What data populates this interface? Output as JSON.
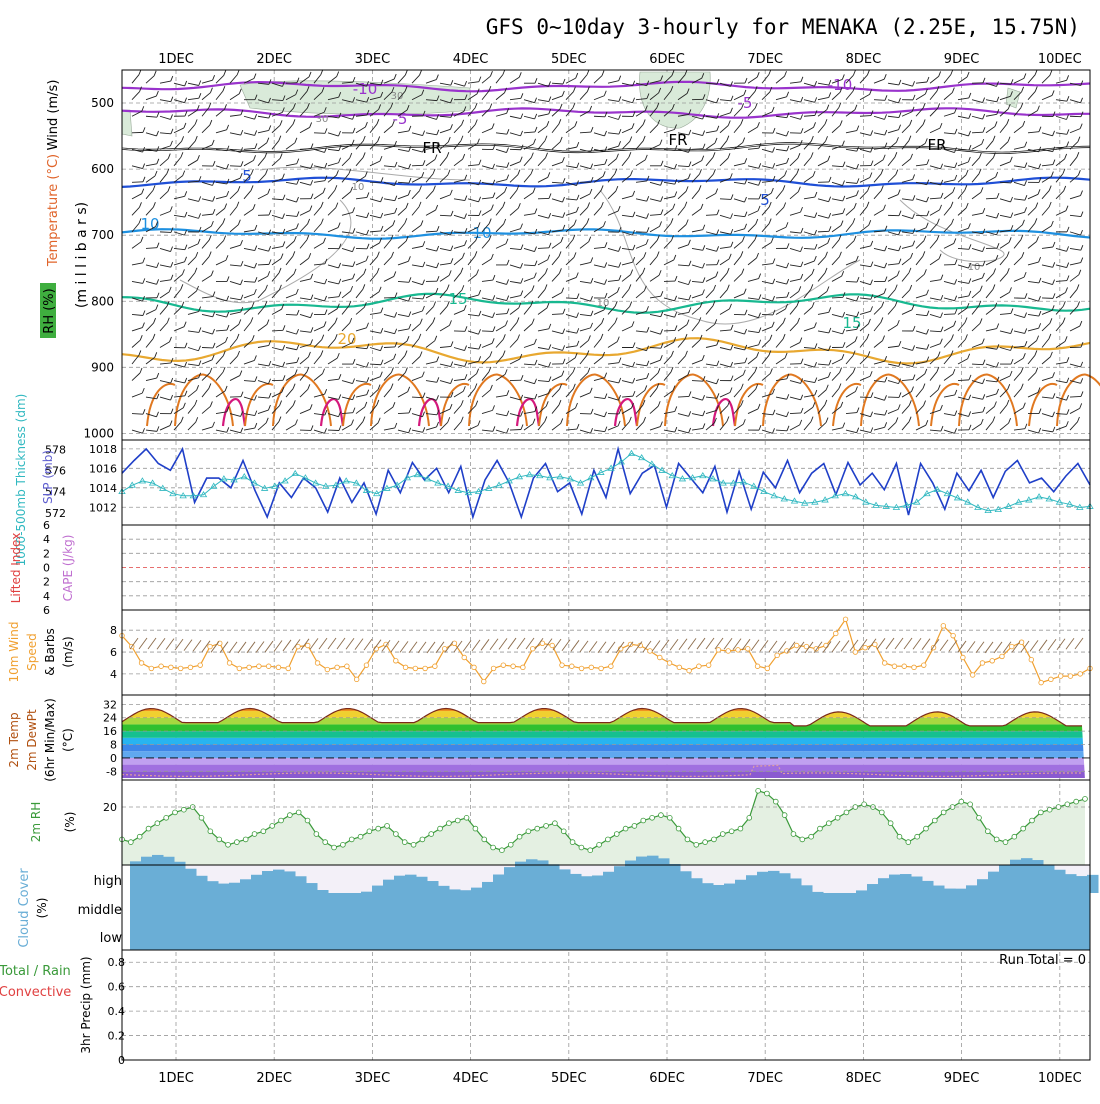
{
  "title": "GFS 0~10day 3-hourly for MENAKA (2.25E, 15.75N)",
  "date_labels": [
    "1DEC",
    "2DEC",
    "3DEC",
    "4DEC",
    "5DEC",
    "6DEC",
    "7DEC",
    "8DEC",
    "9DEC",
    "10DEC"
  ],
  "colors": {
    "purple": "#9933cc",
    "black": "#000000",
    "blue": "#1f4fd6",
    "sky": "#1e90e0",
    "green": "#18b890",
    "orange": "#e8a830",
    "dorange": "#e07820",
    "magenta": "#d4187c",
    "rh_fill": "#d9ead9",
    "cyan": "#30b8c0",
    "navy": "#1f3fc8",
    "wind_brown": "#8a6a4a",
    "wind_orange": "#f0a030",
    "rh2m": "#3a9a3a",
    "cloud": "#6aaed6",
    "cloud_bg": "#f3f0f8"
  },
  "chart_data": [
    {
      "type": "line",
      "panel": "upper-air",
      "ylabel_left": [
        "Wind (m/s)",
        "Temperature (°C)",
        "RH (%)"
      ],
      "ylabel_right": "(m i l l i b a r s)",
      "y_ticks": [
        500,
        600,
        700,
        800,
        900,
        1000
      ],
      "ylim": [
        450,
        1010
      ],
      "isotherms": [
        {
          "name": "-10",
          "level": 475,
          "color": "purple"
        },
        {
          "name": "-5",
          "level": 515,
          "color": "purple"
        },
        {
          "name": "FR",
          "level": 568,
          "color": "black"
        },
        {
          "name": "5",
          "level": 620,
          "color": "blue"
        },
        {
          "name": "10",
          "level": 698,
          "color": "sky"
        },
        {
          "name": "15",
          "level": 803,
          "color": "green"
        },
        {
          "name": "20",
          "level": 875,
          "color": "orange"
        }
      ],
      "contour_labels": [
        "-10",
        "-5",
        "FR",
        "5",
        "10",
        "15",
        "20",
        "30",
        "10"
      ]
    },
    {
      "type": "line",
      "panel": "slp-thickness",
      "ylabel_left": [
        "1000-500mb Thickness (dm)"
      ],
      "ylabel_right": "SLP (mb)",
      "y_ticks_left": [
        572,
        574,
        576,
        578
      ],
      "y_ticks_right": [
        1012,
        1014,
        1016,
        1018
      ],
      "series": [
        {
          "name": "SLP (mb)",
          "color": "navy",
          "values": [
            1015.5,
            1016.8,
            1018,
            1016.5,
            1015.8,
            1018,
            1012.5,
            1015,
            1015,
            1014,
            1016.8,
            1013.7,
            1011,
            1014.5,
            1013,
            1015,
            1014,
            1011.5,
            1015,
            1012.5,
            1014.5,
            1011.3,
            1015.8,
            1013.5,
            1016.6,
            1014.8,
            1016,
            1013.5,
            1016.2,
            1011,
            1014.8,
            1016.8,
            1014.5,
            1011,
            1015,
            1016.5,
            1013.6,
            1014.5,
            1011.3,
            1015.8,
            1013,
            1018,
            1013.4,
            1015.5,
            1016.3,
            1012,
            1016.5,
            1015,
            1013.5,
            1016.2,
            1011.5,
            1015.7,
            1011.8,
            1015.6,
            1014,
            1016.8,
            1013.5,
            1015.5,
            1016.5,
            1013.3,
            1016.6,
            1014.3,
            1015.5,
            1013.8,
            1016.5,
            1011.2,
            1016.5,
            1014.5,
            1011.8,
            1015.5,
            1013.7,
            1015.8,
            1013,
            1015.7,
            1016.8,
            1014.5,
            1015,
            1013.6,
            1015.2,
            1016.5,
            1014.3
          ]
        },
        {
          "name": "1000-500mb Thickness (dm)",
          "color": "cyan",
          "values": [
            574,
            574.6,
            575,
            574.8,
            574.3,
            573.8,
            573.6,
            573.6,
            573.7,
            574.5,
            575.2,
            575.1,
            575.4,
            574.8,
            574.3,
            574.5,
            575,
            575.7,
            575.3,
            574.8,
            574.5,
            574.6,
            575,
            574.8,
            574.1,
            573.8,
            574.3,
            574.6,
            575.3,
            575.6,
            575.2,
            574.8,
            574.5,
            574.1,
            573.9,
            574,
            574.3,
            574.6,
            575,
            575.4,
            575.6,
            575.5,
            575.3,
            575.4,
            575.2,
            574.8,
            575.3,
            575.8,
            576.2,
            576.8,
            577.6,
            577.2,
            576.6,
            576,
            575.5,
            575.2,
            575.3,
            575.5,
            575.2,
            574.8,
            574.8,
            574.9,
            574.5,
            574,
            573.6,
            573.3,
            573.1,
            572.9,
            573,
            573.2,
            573.6,
            573.8,
            573.5,
            573,
            572.7,
            572.6,
            572.5,
            572.7,
            573,
            573.8,
            574.2,
            573.8,
            573.4,
            573,
            572.5,
            572.2,
            572.3,
            572.6,
            573,
            573.2,
            573.5,
            573.3,
            573,
            572.8,
            572.5,
            572.6
          ]
        }
      ]
    },
    {
      "type": "line",
      "panel": "lifted-index-cape",
      "ylabel_left": [
        "Lifted Index"
      ],
      "ylabel_right": "CAPE (J/kg)",
      "y_ticks": [
        6,
        4,
        2,
        0,
        2,
        4,
        6
      ]
    },
    {
      "type": "line",
      "panel": "10m-wind",
      "ylabel_left": [
        "10m Wind",
        "Speed",
        "& Barbs",
        "(m/s)"
      ],
      "y_ticks": [
        4,
        6,
        8
      ],
      "series": [
        {
          "name": "10m Wind Speed",
          "color": "wind_orange",
          "values": [
            7.5,
            6.5,
            5,
            4.5,
            4.7,
            4.6,
            4.5,
            4.6,
            4.8,
            6.5,
            6.8,
            5,
            4.5,
            4.6,
            4.7,
            4.7,
            4.6,
            4.5,
            6.5,
            6.6,
            5,
            4.4,
            4.6,
            4.7,
            3.5,
            4.8,
            6.3,
            6.7,
            5.2,
            4.6,
            4.5,
            4.5,
            4.7,
            6.3,
            6.8,
            5.5,
            4.6,
            3.3,
            4.5,
            4.8,
            4.7,
            4.6,
            6.3,
            6.8,
            6.6,
            4.8,
            4.7,
            4.5,
            4.6,
            4.5,
            4.7,
            6.3,
            6.7,
            6.6,
            6.1,
            5.5,
            5,
            4.6,
            4.3,
            4.7,
            4.8,
            6.2,
            6.1,
            6.2,
            6.3,
            4.7,
            4.5,
            5.7,
            6.1,
            6.6,
            6.5,
            6.3,
            6.6,
            7.7,
            9,
            6,
            6.4,
            6.7,
            5,
            4.7,
            4.7,
            4.6,
            4.8,
            6.4,
            8.4,
            7.5,
            5.5,
            3.9,
            5,
            5.2,
            5.6,
            6.5,
            6.9,
            5.3,
            3.2,
            3.5,
            3.8,
            3.8,
            4,
            4.5
          ]
        }
      ]
    },
    {
      "type": "area",
      "panel": "2m-temp",
      "ylabel_left": [
        "2m Temp",
        "2m DewPt",
        "(6hr Min/Max)",
        "(°C)"
      ],
      "y_ticks": [
        32,
        24,
        16,
        8,
        0,
        -8
      ]
    },
    {
      "type": "area",
      "panel": "2m-rh",
      "ylabel_left": [
        "2m RH",
        "(%)"
      ],
      "y_ticks": [
        20
      ],
      "series": [
        {
          "name": "2m RH",
          "color": "rh2m",
          "values": [
            8,
            7,
            9,
            12,
            14,
            16,
            18,
            19,
            20,
            16,
            11,
            8,
            6,
            7,
            8,
            10,
            11,
            13,
            15,
            17,
            18,
            15,
            10,
            7,
            5,
            6,
            8,
            9,
            11,
            12,
            13,
            10,
            7,
            6,
            8,
            10,
            12,
            14,
            15,
            16,
            12,
            8,
            5,
            4,
            6,
            9,
            11,
            12,
            13,
            14,
            11,
            7,
            5,
            4,
            6,
            8,
            10,
            12,
            13,
            15,
            16,
            17,
            16,
            12,
            8,
            6,
            7,
            8,
            10,
            11,
            12,
            16,
            26,
            25,
            22,
            17,
            10,
            8,
            9,
            12,
            14,
            16,
            18,
            20,
            21,
            20,
            18,
            14,
            9,
            7,
            9,
            12,
            15,
            18,
            20,
            22,
            21,
            16,
            11,
            8,
            7,
            9,
            12,
            15,
            18,
            19,
            20,
            21,
            22,
            23
          ]
        }
      ]
    },
    {
      "type": "bar",
      "panel": "cloud-cover",
      "ylabel_left": [
        "Cloud Cover",
        "(%)"
      ],
      "levels": [
        "high",
        "middle",
        "low"
      ]
    },
    {
      "type": "bar",
      "panel": "3hr-precip",
      "ylabel_left": [
        "Total / Rain",
        "Convective",
        "3hr Precip (mm)"
      ],
      "y_ticks": [
        0,
        0.2,
        0.4,
        0.6,
        0.8
      ],
      "note": "Run Total = 0",
      "values": []
    }
  ]
}
